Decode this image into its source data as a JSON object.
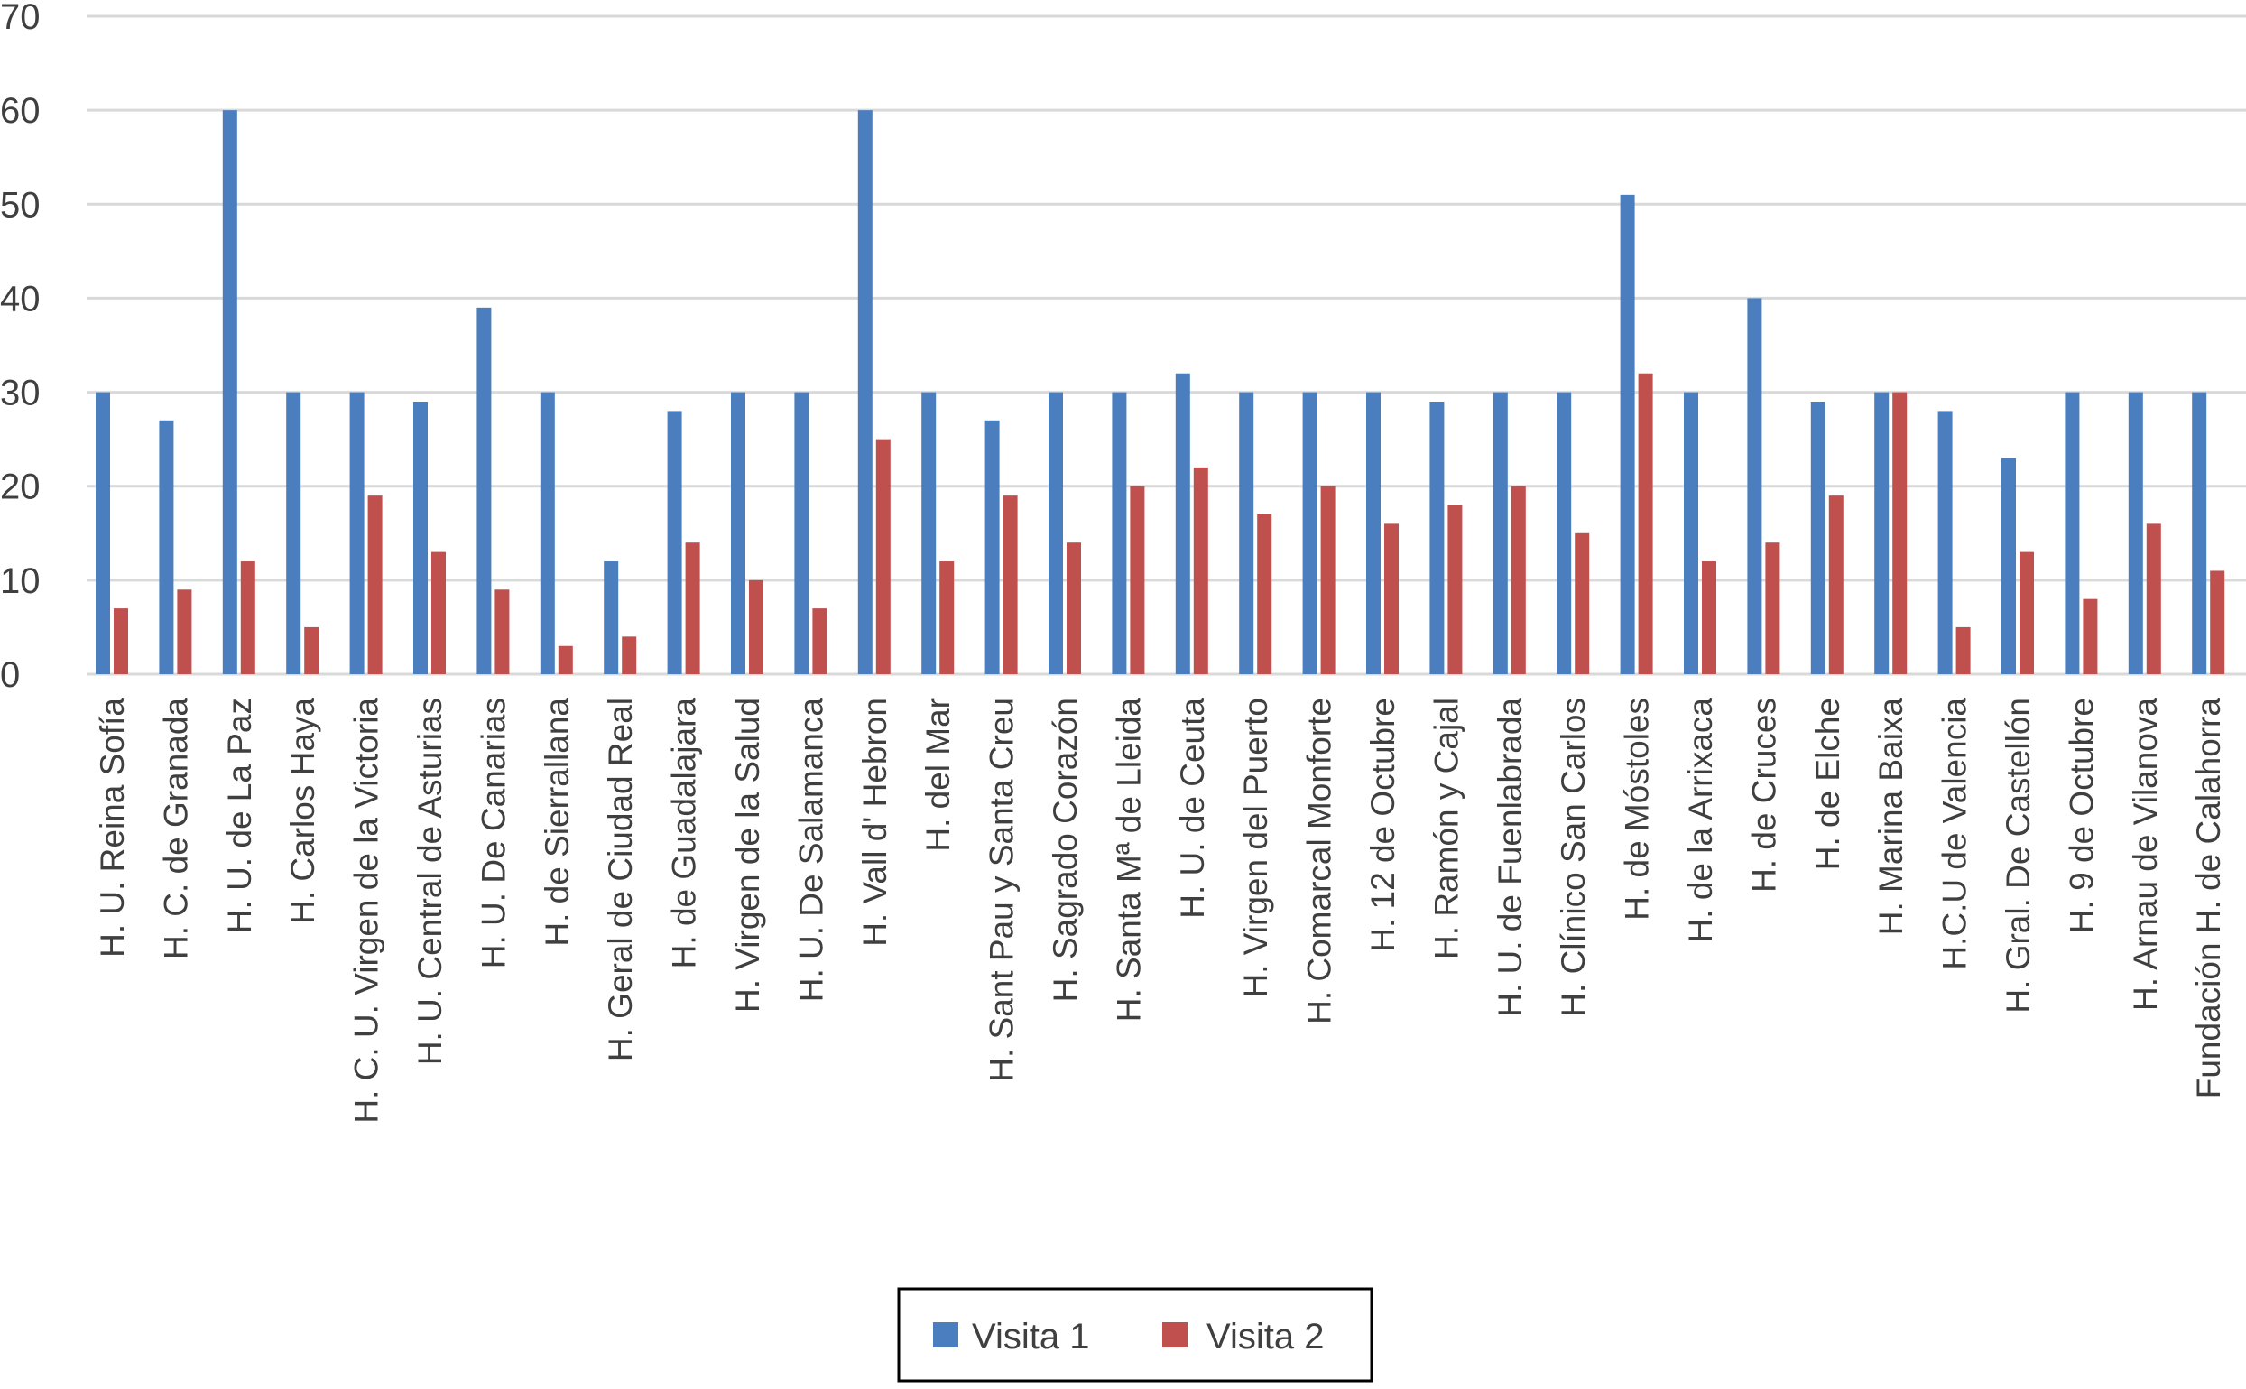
{
  "chart_data": {
    "type": "bar",
    "categories": [
      "H. U. Reina Sofía",
      "H. C. de Granada",
      "H. U. de La Paz",
      "H. Carlos Haya",
      "H. C. U. Virgen de la Victoria",
      "H. U. Central de Asturias",
      "H. U. De Canarias",
      "H. de Sierrallana",
      "H. Geral de Ciudad Real",
      "H. de Guadalajara",
      "H. Virgen de la Salud",
      "H. U. De Salamanca",
      "H. Vall d' Hebron",
      "H. del Mar",
      "H. Sant Pau y Santa Creu",
      "H. Sagrado Corazón",
      "H. Santa Mª de Lleida",
      "H. U. de Ceuta",
      "H. Virgen del Puerto",
      "H. Comarcal Monforte",
      "H. 12 de Octubre",
      "H. Ramón y Cajal",
      "H. U. de Fuenlabrada",
      "H. Clínico San Carlos",
      "H. de Móstoles",
      "H. de la Arrixaca",
      "H. de Cruces",
      "H. de Elche",
      "H. Marina Baixa",
      "H.C.U de Valencia",
      "H. Gral. De Castellón",
      "H. 9 de Octubre",
      "H. Arnau de Vilanova",
      "Fundación H. de Calahorra"
    ],
    "series": [
      {
        "name": "Visita 1",
        "color": "#4a7ebf",
        "values": [
          30,
          27,
          60,
          30,
          30,
          29,
          39,
          30,
          12,
          28,
          30,
          30,
          60,
          30,
          27,
          30,
          30,
          32,
          30,
          30,
          30,
          29,
          30,
          30,
          51,
          30,
          40,
          29,
          30,
          28,
          23,
          30,
          30,
          30
        ]
      },
      {
        "name": "Visita 2",
        "color": "#c0504d",
        "values": [
          7,
          9,
          12,
          5,
          19,
          13,
          9,
          3,
          4,
          14,
          10,
          7,
          25,
          12,
          19,
          14,
          20,
          22,
          17,
          20,
          16,
          18,
          20,
          15,
          32,
          12,
          14,
          19,
          30,
          5,
          13,
          8,
          16,
          11
        ]
      }
    ],
    "yticks": [
      "0",
      "10",
      "20",
      "30",
      "40",
      "50",
      "60",
      "70"
    ],
    "ylim": [
      0,
      70
    ],
    "grid": true,
    "legend_position": "bottom-center"
  }
}
